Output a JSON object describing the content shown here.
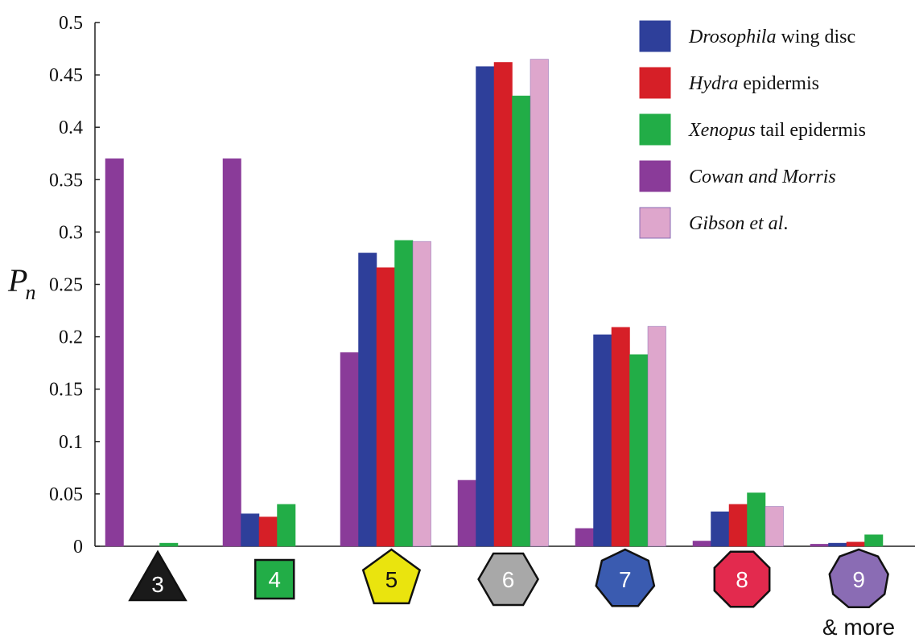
{
  "chart_data": {
    "type": "bar",
    "ylabel_main": "P",
    "ylabel_sub": "n",
    "xlabel": "",
    "ylim": [
      0,
      0.5
    ],
    "yticks": [
      "0",
      "0.05",
      "0.1",
      "0.15",
      "0.2",
      "0.25",
      "0.3",
      "0.35",
      "0.4",
      "0.45",
      "0.5"
    ],
    "grid": false,
    "legend_position": "top-right",
    "categories": [
      "3",
      "4",
      "5",
      "6",
      "7",
      "8",
      "9"
    ],
    "category_suffix": "& more",
    "series": [
      {
        "name": "Cowan and Morris",
        "name_italic": "Cowan and Morris",
        "name_rest": "",
        "color": "#8a3b99",
        "values": [
          0.37,
          0.37,
          0.185,
          0.063,
          0.017,
          0.005,
          0.002
        ]
      },
      {
        "name": "Drosophila wing disc",
        "name_italic": "Drosophila",
        "name_rest": " wing disc",
        "color": "#2e3f9a",
        "values": [
          0.0,
          0.031,
          0.28,
          0.458,
          0.202,
          0.033,
          0.003
        ]
      },
      {
        "name": "Hydra epidermis",
        "name_italic": "Hydra",
        "name_rest": " epidermis",
        "color": "#d61f27",
        "values": [
          0.0,
          0.028,
          0.266,
          0.462,
          0.209,
          0.04,
          0.004
        ]
      },
      {
        "name": "Xenopus tail epidermis",
        "name_italic": "Xenopus",
        "name_rest": " tail epidermis",
        "color": "#22ad47",
        "values": [
          0.003,
          0.04,
          0.292,
          0.43,
          0.183,
          0.051,
          0.011
        ]
      },
      {
        "name": "Gibson et al.",
        "name_italic": "Gibson et al",
        "name_rest": ".",
        "color": "#dea6cc",
        "values": [
          0.0,
          0.0,
          0.291,
          0.465,
          0.21,
          0.038,
          0.0
        ]
      }
    ],
    "legend_order": [
      1,
      2,
      3,
      0,
      4
    ],
    "badges": [
      {
        "label": "3",
        "shape": "triangle",
        "fill": "#1a1a1a",
        "text_dark": false
      },
      {
        "label": "4",
        "shape": "square",
        "fill": "#22ad47",
        "text_dark": false
      },
      {
        "label": "5",
        "shape": "pentagon",
        "fill": "#eae40e",
        "text_dark": true
      },
      {
        "label": "6",
        "shape": "hexagon",
        "fill": "#a8a8a8",
        "text_dark": false
      },
      {
        "label": "7",
        "shape": "heptagon",
        "fill": "#3a5bb0",
        "text_dark": false
      },
      {
        "label": "8",
        "shape": "octagon",
        "fill": "#e32a4e",
        "text_dark": false
      },
      {
        "label": "9",
        "shape": "nonagon",
        "fill": "#8a6cb4",
        "text_dark": false
      }
    ]
  }
}
